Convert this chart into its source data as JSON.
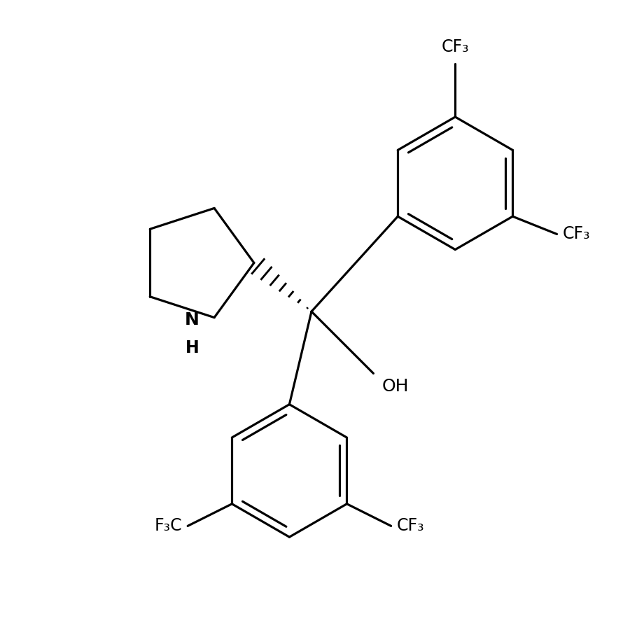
{
  "background_color": "#ffffff",
  "line_color": "#000000",
  "line_width": 2.3,
  "font_size": 17,
  "fig_size": [
    8.9,
    8.9
  ],
  "dpi": 100,
  "xlim": [
    -1.4,
    1.4
  ],
  "ylim": [
    -1.4,
    1.4
  ]
}
